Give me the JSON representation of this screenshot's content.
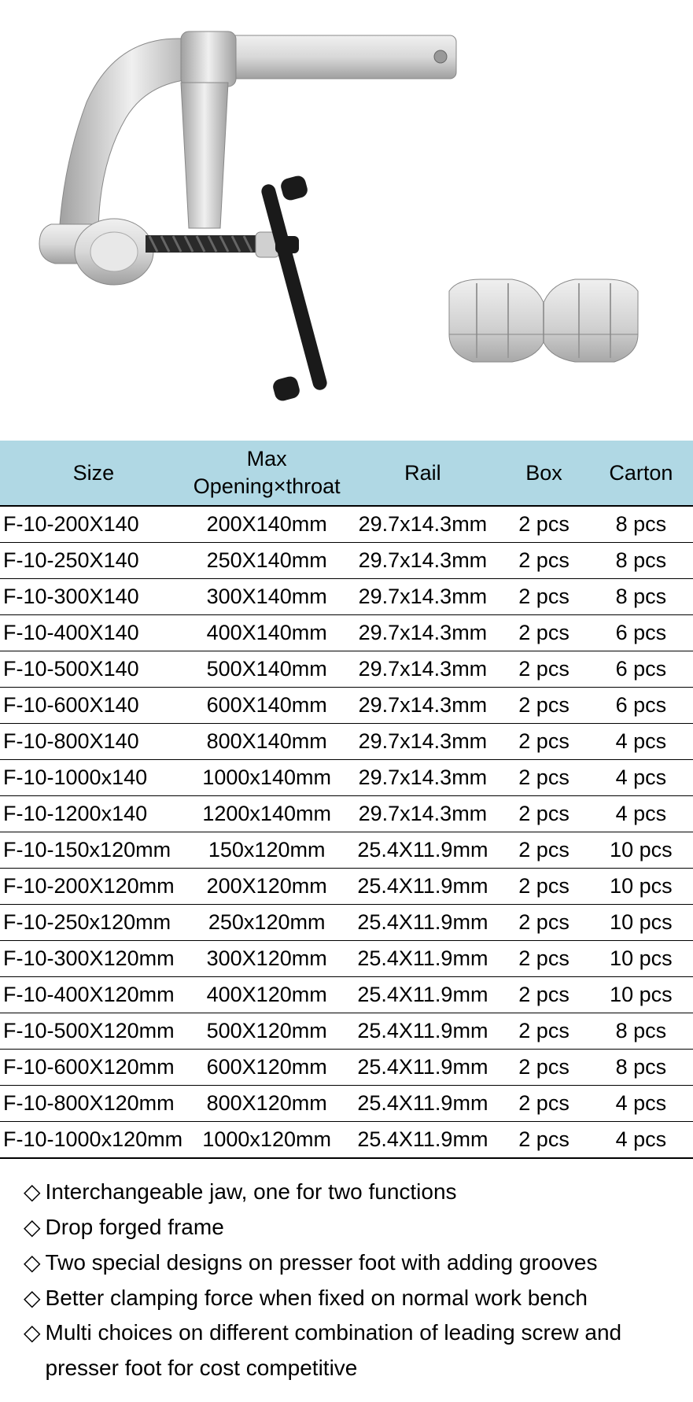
{
  "table": {
    "headers": {
      "size": "Size",
      "max_line1": "Max",
      "max_line2": "Opening×throat",
      "rail": "Rail",
      "box": "Box",
      "carton": "Carton"
    },
    "header_bg": "#b0d8e4",
    "border_color": "#000000",
    "font_size": 27,
    "rows": [
      {
        "size": "F-10-200X140",
        "max": "200X140mm",
        "rail": "29.7x14.3mm",
        "box": "2 pcs",
        "carton": "8 pcs"
      },
      {
        "size": "F-10-250X140",
        "max": "250X140mm",
        "rail": "29.7x14.3mm",
        "box": "2 pcs",
        "carton": "8 pcs"
      },
      {
        "size": "F-10-300X140",
        "max": "300X140mm",
        "rail": "29.7x14.3mm",
        "box": "2 pcs",
        "carton": "8 pcs"
      },
      {
        "size": "F-10-400X140",
        "max": "400X140mm",
        "rail": "29.7x14.3mm",
        "box": "2 pcs",
        "carton": "6 pcs"
      },
      {
        "size": "F-10-500X140",
        "max": "500X140mm",
        "rail": "29.7x14.3mm",
        "box": "2 pcs",
        "carton": "6 pcs"
      },
      {
        "size": "F-10-600X140",
        "max": "600X140mm",
        "rail": "29.7x14.3mm",
        "box": "2 pcs",
        "carton": "6 pcs"
      },
      {
        "size": "F-10-800X140",
        "max": "800X140mm",
        "rail": "29.7x14.3mm",
        "box": "2 pcs",
        "carton": "4 pcs"
      },
      {
        "size": "F-10-1000x140",
        "max": "1000x140mm",
        "rail": "29.7x14.3mm",
        "box": "2 pcs",
        "carton": "4 pcs"
      },
      {
        "size": "F-10-1200x140",
        "max": "1200x140mm",
        "rail": "29.7x14.3mm",
        "box": "2 pcs",
        "carton": "4 pcs"
      },
      {
        "size": "F-10-150x120mm",
        "max": "150x120mm",
        "rail": "25.4X11.9mm",
        "box": "2 pcs",
        "carton": "10 pcs"
      },
      {
        "size": "F-10-200X120mm",
        "max": "200X120mm",
        "rail": "25.4X11.9mm",
        "box": "2 pcs",
        "carton": "10 pcs"
      },
      {
        "size": "F-10-250x120mm",
        "max": "250x120mm",
        "rail": "25.4X11.9mm",
        "box": "2 pcs",
        "carton": "10 pcs"
      },
      {
        "size": "F-10-300X120mm",
        "max": "300X120mm",
        "rail": "25.4X11.9mm",
        "box": "2 pcs",
        "carton": "10 pcs"
      },
      {
        "size": "F-10-400X120mm",
        "max": "400X120mm",
        "rail": "25.4X11.9mm",
        "box": "2 pcs",
        "carton": "10 pcs"
      },
      {
        "size": "F-10-500X120mm",
        "max": "500X120mm",
        "rail": "25.4X11.9mm",
        "box": "2 pcs",
        "carton": "8 pcs"
      },
      {
        "size": "F-10-600X120mm",
        "max": "600X120mm",
        "rail": "25.4X11.9mm",
        "box": "2 pcs",
        "carton": "8 pcs"
      },
      {
        "size": "F-10-800X120mm",
        "max": "800X120mm",
        "rail": "25.4X11.9mm",
        "box": "2 pcs",
        "carton": "4 pcs"
      },
      {
        "size": "F-10-1000x120mm",
        "max": "1000x120mm",
        "rail": "25.4X11.9mm",
        "box": "2 pcs",
        "carton": "4 pcs"
      }
    ]
  },
  "features": {
    "bullet": "◇",
    "font_size": 28,
    "items": [
      "Interchangeable jaw, one for two functions",
      "Drop forged frame",
      "Two special designs on presser foot with adding  grooves",
      "Better clamping force when fixed on normal work bench",
      "Multi choices on different combination of leading screw and presser foot for cost competitive"
    ]
  },
  "image": {
    "clamp_colors": {
      "metal": "#d8d8d8",
      "metal_light": "#f0f0f0",
      "metal_dark": "#a0a0a0",
      "handle": "#1a1a1a",
      "screw": "#2a2a2a"
    },
    "foot_colors": {
      "light": "#e8e8e8",
      "mid": "#c8c8c8",
      "dark": "#a8a8a8"
    }
  }
}
